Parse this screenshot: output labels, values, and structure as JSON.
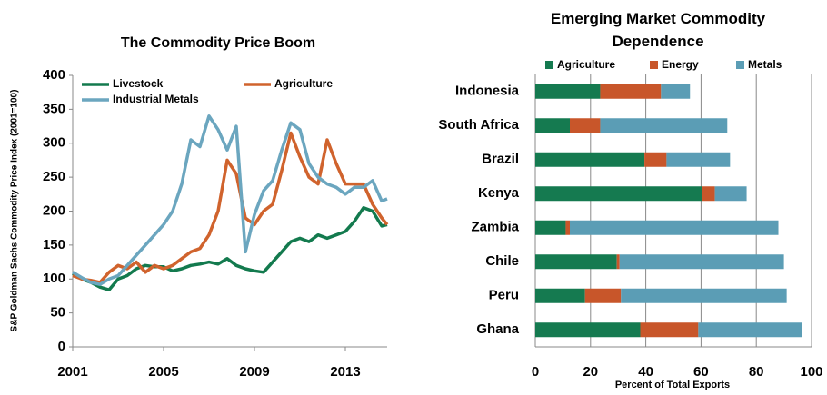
{
  "chart_data": [
    {
      "type": "line",
      "title": "The Commodity Price Boom",
      "ylabel": "S&P Goldman Sachs Commodity Price Index (2001=100)",
      "x": [
        2001,
        2001.4,
        2001.8,
        2002.2,
        2002.6,
        2003,
        2003.4,
        2003.8,
        2004.2,
        2004.6,
        2005,
        2005.4,
        2005.8,
        2006.2,
        2006.6,
        2007,
        2007.4,
        2007.8,
        2008.2,
        2008.6,
        2009,
        2009.4,
        2009.8,
        2010.2,
        2010.6,
        2011,
        2011.4,
        2011.8,
        2012.2,
        2012.6,
        2013,
        2013.4,
        2013.8,
        2014.2,
        2014.6,
        2014.84
      ],
      "xlim": [
        2001,
        2014.84
      ],
      "xticks": [
        2001,
        2005,
        2009,
        2013
      ],
      "ylim": [
        0,
        400
      ],
      "yticks": [
        0,
        50,
        100,
        150,
        200,
        250,
        300,
        350,
        400
      ],
      "series": [
        {
          "name": "Livestock",
          "color": "#137a4e",
          "values": [
            108,
            100,
            95,
            88,
            84,
            100,
            105,
            115,
            120,
            118,
            118,
            112,
            115,
            120,
            122,
            125,
            122,
            130,
            120,
            115,
            112,
            110,
            125,
            140,
            155,
            160,
            155,
            165,
            160,
            165,
            170,
            185,
            205,
            200,
            178,
            180
          ]
        },
        {
          "name": "Agriculture",
          "color": "#d0632d",
          "values": [
            105,
            100,
            98,
            95,
            110,
            120,
            115,
            125,
            110,
            120,
            115,
            120,
            130,
            140,
            145,
            165,
            200,
            275,
            255,
            190,
            180,
            200,
            210,
            260,
            315,
            280,
            250,
            240,
            305,
            270,
            240,
            240,
            240,
            210,
            190,
            180
          ]
        },
        {
          "name": "Industrial Metals",
          "color": "#6ba6bf",
          "values": [
            110,
            102,
            95,
            92,
            100,
            105,
            120,
            135,
            150,
            165,
            180,
            200,
            240,
            305,
            295,
            340,
            320,
            290,
            325,
            140,
            195,
            230,
            245,
            290,
            330,
            320,
            270,
            250,
            240,
            235,
            225,
            235,
            235,
            245,
            215,
            218
          ]
        }
      ]
    },
    {
      "type": "stacked_barh",
      "title": "Emerging Market Commodity Dependence",
      "xlabel": "Percent of Total Exports",
      "categories": [
        "Indonesia",
        "South Africa",
        "Brazil",
        "Kenya",
        "Zambia",
        "Chile",
        "Peru",
        "Ghana"
      ],
      "xlim": [
        0,
        100
      ],
      "xticks": [
        0,
        20,
        40,
        60,
        80,
        100
      ],
      "grid": true,
      "series": [
        {
          "name": "Agriculture",
          "color": "#157a50",
          "values": [
            23.5,
            12.5,
            39.5,
            60.5,
            11,
            29.5,
            18,
            38
          ]
        },
        {
          "name": "Energy",
          "color": "#c8562a",
          "values": [
            22,
            11,
            8,
            4.5,
            1.5,
            1,
            13,
            21
          ]
        },
        {
          "name": "Metals",
          "color": "#5b9db5",
          "values": [
            10.5,
            46,
            23,
            11.5,
            75.5,
            59.5,
            60,
            37.5
          ]
        }
      ]
    }
  ]
}
